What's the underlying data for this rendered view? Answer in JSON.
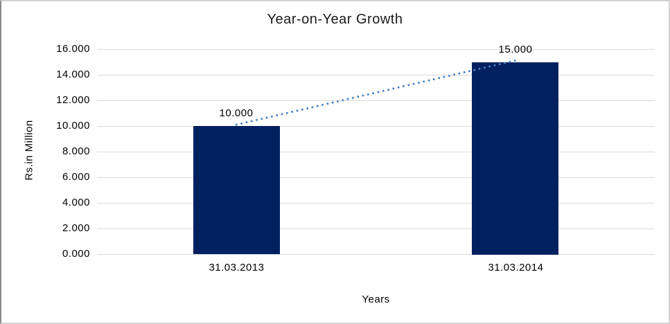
{
  "panel": {
    "background": "#ffffff",
    "border_color": "#d2d2d2"
  },
  "chart_data": {
    "type": "bar",
    "title": "Year-on-Year Growth",
    "xlabel": "Years",
    "ylabel": "Rs.in Million",
    "categories": [
      "31.03.2013",
      "31.03.2014"
    ],
    "values": [
      10.0,
      15.0
    ],
    "data_labels": [
      "10.000",
      "15.000"
    ],
    "ylim": [
      0,
      16
    ],
    "ytick_step": 2,
    "ytick_labels": [
      "0.000",
      "2.000",
      "4.000",
      "6.000",
      "8.000",
      "10.000",
      "12.000",
      "14.000",
      "16.000"
    ],
    "grid": "horizontal-on",
    "legend": "none",
    "trendline": {
      "type": "linear",
      "style": "dotted",
      "color": "#4a82c4"
    },
    "colors": {
      "bar": "#002060",
      "gridline": "#d9d9d9",
      "axis_line": "#d9d9d9",
      "text": "#000000"
    }
  }
}
